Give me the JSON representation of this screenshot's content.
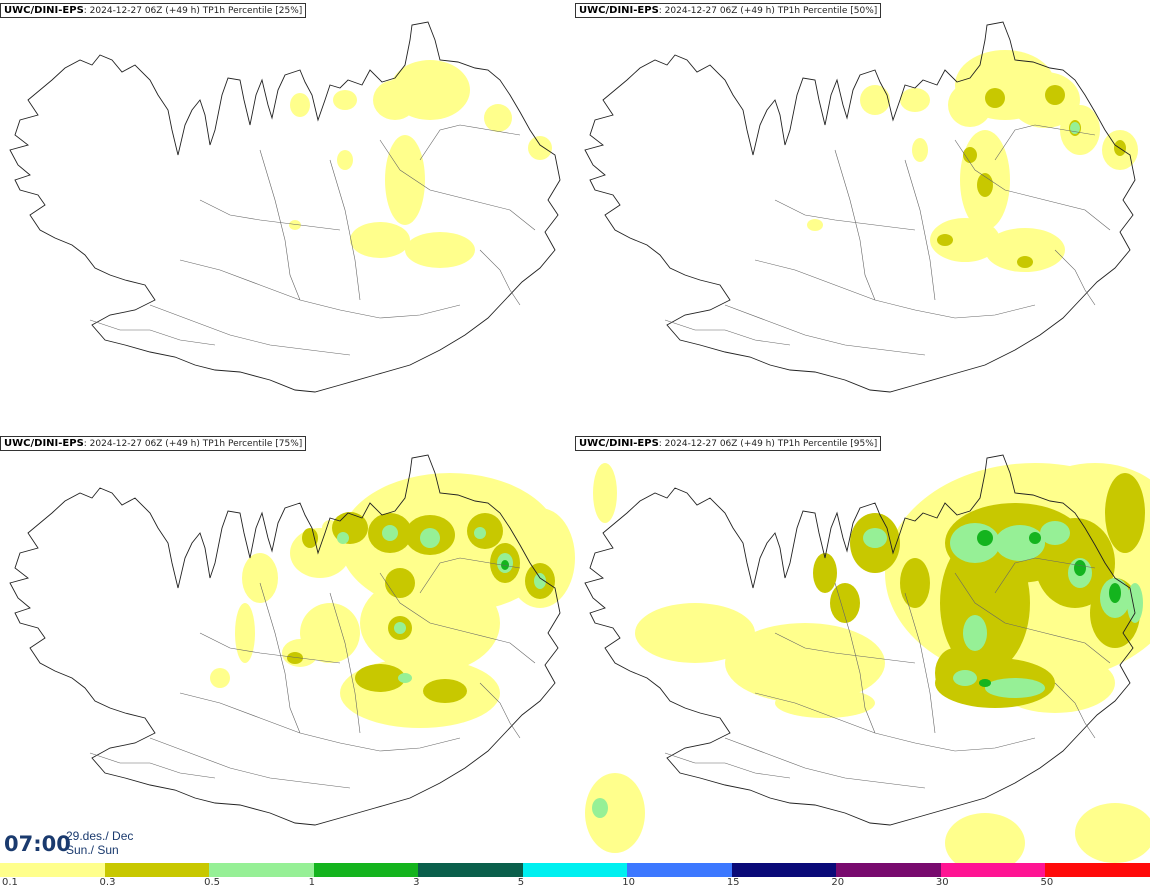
{
  "panels": [
    {
      "model": "UWC/DINI-EPS",
      "run": ": 2024-12-27 06Z (+49 h)",
      "product": " TP1h Percentile [25%]"
    },
    {
      "model": "UWC/DINI-EPS",
      "run": ": 2024-12-27 06Z (+49 h)",
      "product": " TP1h Percentile [50%]"
    },
    {
      "model": "UWC/DINI-EPS",
      "run": ": 2024-12-27 06Z (+49 h)",
      "product": " TP1h Percentile [75%]"
    },
    {
      "model": "UWC/DINI-EPS",
      "run": ": 2024-12-27 06Z (+49 h)",
      "product": " TP1h Percentile [95%]"
    }
  ],
  "valid_time": {
    "time": "07:00",
    "date_line1": "29.des./ Dec",
    "date_line2": "Sun./ Sun"
  },
  "legend": {
    "colors": [
      "#ffff8c",
      "#c8c800",
      "#96f096",
      "#14b41e",
      "#0a5f4b",
      "#00f0f0",
      "#3c78ff",
      "#0a0a78",
      "#780a6e",
      "#ff1493",
      "#ff0a0a"
    ],
    "labels": [
      "0.1",
      "0.3",
      "0.5",
      "1",
      "3",
      "5",
      "10",
      "15",
      "20",
      "30",
      "50"
    ]
  },
  "precip_colors": {
    "light": "#ffff8c",
    "moderate": "#c8c800",
    "heavy": "#96f096",
    "very_heavy": "#14b41e"
  }
}
